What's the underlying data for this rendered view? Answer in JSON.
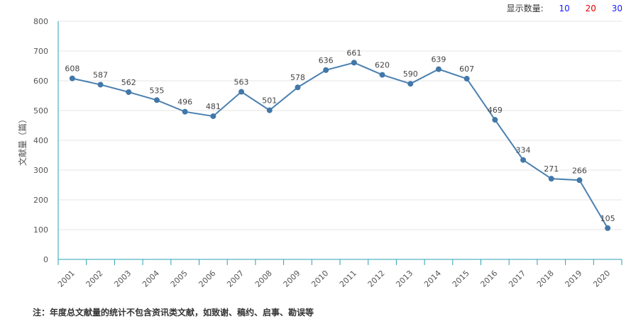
{
  "display_control": {
    "label": "显示数量:",
    "options": [
      {
        "label": "10",
        "color": "#1a1aff"
      },
      {
        "label": "20",
        "color": "#e60000"
      },
      {
        "label": "30",
        "color": "#1a1aff"
      }
    ]
  },
  "footnote": "注：年度总文献量的统计不包含资讯类文献，如致谢、稿约、启事、勘误等",
  "colors": {
    "line": "#4a80b0",
    "point": "#4277a8",
    "axis": "#2aa0b5",
    "grid": "#e6e6e6"
  },
  "chart_data": {
    "type": "line",
    "title": "",
    "xlabel": "",
    "ylabel": "文献量（篇）",
    "categories": [
      "2001",
      "2002",
      "2003",
      "2004",
      "2005",
      "2006",
      "2007",
      "2008",
      "2009",
      "2010",
      "2011",
      "2012",
      "2013",
      "2014",
      "2015",
      "2016",
      "2017",
      "2018",
      "2019",
      "2020"
    ],
    "values": [
      608,
      587,
      562,
      535,
      496,
      481,
      563,
      501,
      578,
      636,
      661,
      620,
      590,
      639,
      607,
      469,
      334,
      271,
      266,
      105
    ],
    "ylim": [
      0,
      800
    ],
    "yticks": [
      0,
      100,
      200,
      300,
      400,
      500,
      600,
      700,
      800
    ],
    "grid": true,
    "data_labels": true
  }
}
